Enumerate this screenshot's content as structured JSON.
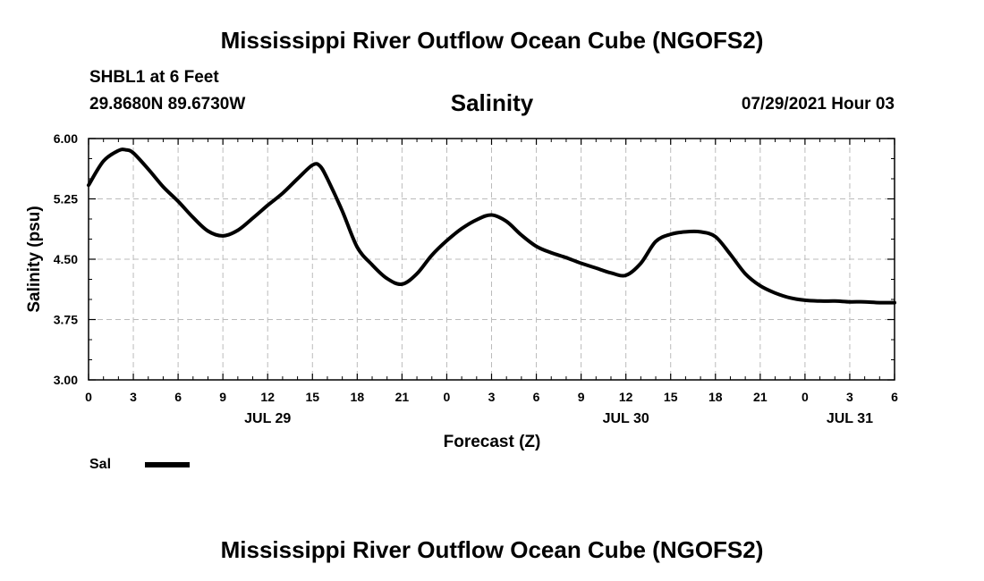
{
  "header": {
    "title_top": "Mississippi River Outflow Ocean Cube (NGOFS2)",
    "station": "SHBL1 at 6 Feet",
    "location": "29.8680N  89.6730W",
    "datetime": "07/29/2021 Hour 03",
    "title_bottom": "Mississippi River Outflow Ocean Cube (NGOFS2)"
  },
  "colors": {
    "line": "#000000",
    "grid": "#bbbbbb",
    "background": "#ffffff"
  },
  "chart_data": {
    "type": "line",
    "title": "Salinity",
    "xlabel": "Forecast (Z)",
    "ylabel": "Salinity (psu)",
    "xlim": [
      0,
      54
    ],
    "ylim": [
      3.0,
      6.0
    ],
    "grid": true,
    "x_ticks": [
      {
        "x": 0,
        "label": "0"
      },
      {
        "x": 3,
        "label": "3"
      },
      {
        "x": 6,
        "label": "6"
      },
      {
        "x": 9,
        "label": "9"
      },
      {
        "x": 12,
        "label": "12"
      },
      {
        "x": 15,
        "label": "15"
      },
      {
        "x": 18,
        "label": "18"
      },
      {
        "x": 21,
        "label": "21"
      },
      {
        "x": 24,
        "label": "0"
      },
      {
        "x": 27,
        "label": "3"
      },
      {
        "x": 30,
        "label": "6"
      },
      {
        "x": 33,
        "label": "9"
      },
      {
        "x": 36,
        "label": "12"
      },
      {
        "x": 39,
        "label": "15"
      },
      {
        "x": 42,
        "label": "18"
      },
      {
        "x": 45,
        "label": "21"
      },
      {
        "x": 48,
        "label": "0"
      },
      {
        "x": 51,
        "label": "3"
      },
      {
        "x": 54,
        "label": "6"
      }
    ],
    "y_ticks": [
      {
        "y": 3.0,
        "label": "3.00"
      },
      {
        "y": 3.75,
        "label": "3.75"
      },
      {
        "y": 4.5,
        "label": "4.50"
      },
      {
        "y": 5.25,
        "label": "5.25"
      },
      {
        "y": 6.0,
        "label": "6.00"
      }
    ],
    "date_labels": [
      {
        "x": 12,
        "label": "JUL 29"
      },
      {
        "x": 36,
        "label": "JUL 30"
      },
      {
        "x": 51,
        "label": "JUL 31"
      }
    ],
    "legend": {
      "label": "Sal",
      "placement": "bottom-left"
    },
    "series": [
      {
        "name": "Sal",
        "x": [
          0,
          1,
          2,
          2.5,
          3,
          4,
          5,
          6,
          7,
          8,
          9,
          10,
          11,
          12,
          13,
          14,
          15,
          15.5,
          16,
          17,
          18,
          19,
          20,
          21,
          22,
          23,
          24,
          25,
          26,
          27,
          28,
          29,
          30,
          31,
          32,
          33,
          34,
          35,
          36,
          37,
          38,
          39,
          40,
          41,
          42,
          43,
          44,
          45,
          46,
          47,
          48,
          49,
          50,
          51,
          52,
          53,
          54
        ],
        "y": [
          5.42,
          5.72,
          5.85,
          5.86,
          5.82,
          5.62,
          5.4,
          5.22,
          5.02,
          4.85,
          4.79,
          4.86,
          5.01,
          5.17,
          5.32,
          5.5,
          5.67,
          5.66,
          5.5,
          5.1,
          4.65,
          4.43,
          4.26,
          4.19,
          4.32,
          4.55,
          4.73,
          4.88,
          4.99,
          5.05,
          4.97,
          4.8,
          4.66,
          4.58,
          4.52,
          4.45,
          4.39,
          4.33,
          4.3,
          4.45,
          4.72,
          4.81,
          4.84,
          4.84,
          4.78,
          4.56,
          4.32,
          4.17,
          4.08,
          4.02,
          3.99,
          3.98,
          3.98,
          3.97,
          3.97,
          3.96,
          3.96
        ]
      }
    ]
  }
}
